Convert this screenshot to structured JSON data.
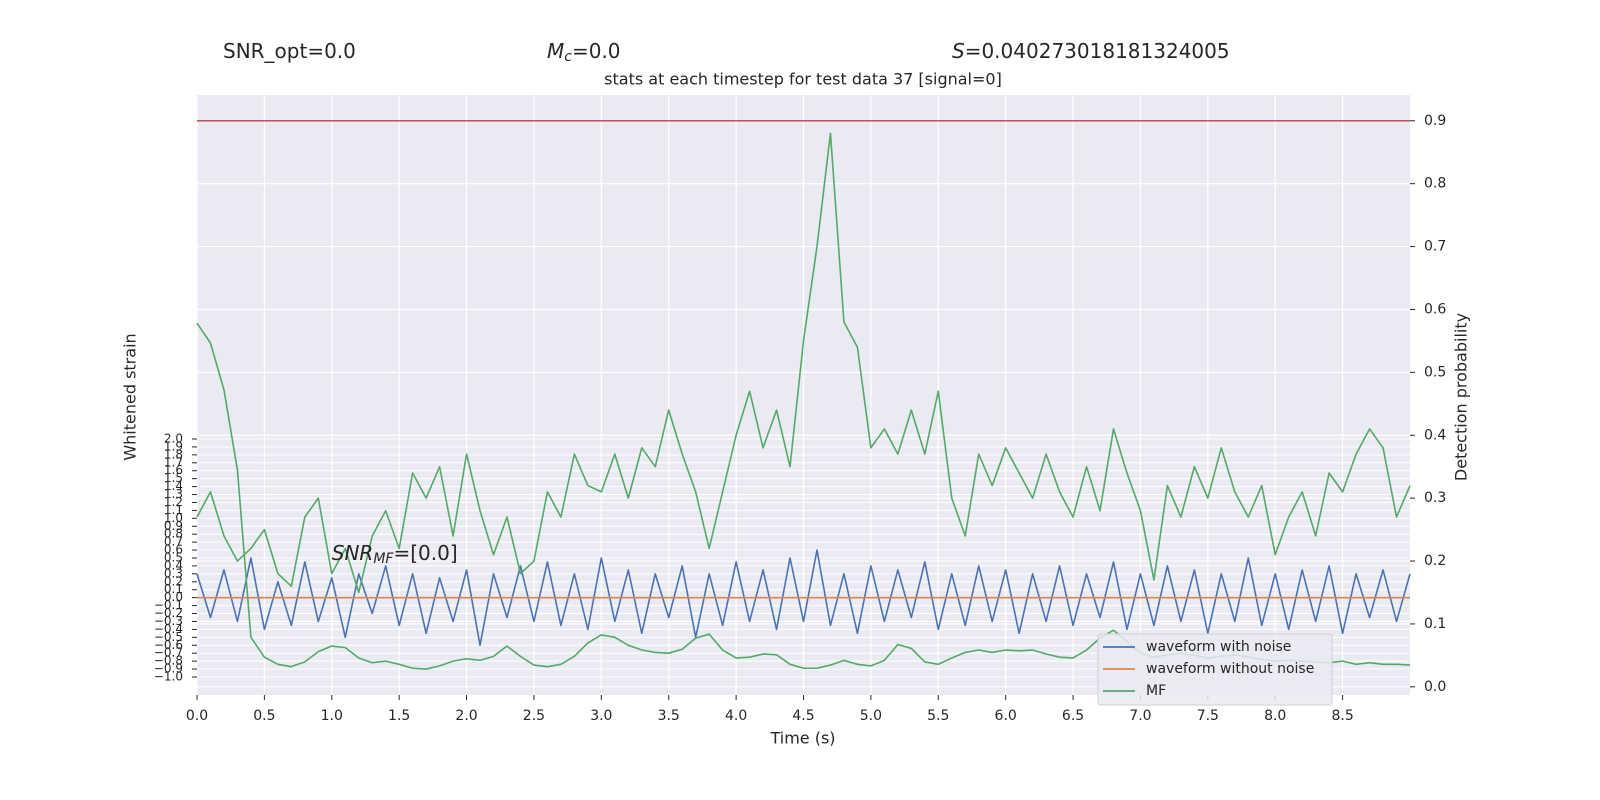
{
  "chart_data": {
    "type": "line",
    "headers": [
      {
        "main": "SNR_opt=0.0"
      },
      {
        "main": "M",
        "sub": "c",
        "rest": "=0.0"
      },
      {
        "main": "S",
        "rest": "=0.040273018181324005"
      }
    ],
    "title": "stats at each timestep for test data 37 [signal=0]",
    "annotation": {
      "main": "SNR",
      "sub": "MF",
      "rest": "=[0.0]",
      "x": 1.0,
      "y": 0.55
    },
    "x_label": "Time (s)",
    "y_label": "Whitened strain",
    "y2_label": "Detection probability",
    "grid": true,
    "legend": "lower right",
    "xlim": [
      0,
      9.0
    ],
    "ylim": [
      -1.227,
      6.336
    ],
    "y2lim": [
      -0.013,
      0.941
    ],
    "xticks": [
      {
        "value": 0,
        "label": "0.0"
      },
      {
        "value": 0.5,
        "label": "0.5"
      },
      {
        "value": 1,
        "label": "1.0"
      },
      {
        "value": 1.5,
        "label": "1.5"
      },
      {
        "value": 2,
        "label": "2.0"
      },
      {
        "value": 2.5,
        "label": "2.5"
      },
      {
        "value": 3,
        "label": "3.0"
      },
      {
        "value": 3.5,
        "label": "3.5"
      },
      {
        "value": 4,
        "label": "4.0"
      },
      {
        "value": 4.5,
        "label": "4.5"
      },
      {
        "value": 5,
        "label": "5.0"
      },
      {
        "value": 5.5,
        "label": "5.5"
      },
      {
        "value": 6,
        "label": "6.0"
      },
      {
        "value": 6.5,
        "label": "6.5"
      },
      {
        "value": 7,
        "label": "7.0"
      },
      {
        "value": 7.5,
        "label": "7.5"
      },
      {
        "value": 8,
        "label": "8.0"
      },
      {
        "value": 8.5,
        "label": "8.5"
      }
    ],
    "yticks": [
      {
        "value": -1,
        "label": "−1.0"
      },
      {
        "value": -0.9,
        "label": "−0.9"
      },
      {
        "value": -0.8,
        "label": "−0.8"
      },
      {
        "value": -0.7,
        "label": "−0.7"
      },
      {
        "value": -0.6,
        "label": "−0.6"
      },
      {
        "value": -0.5,
        "label": "−0.5"
      },
      {
        "value": -0.4,
        "label": "−0.4"
      },
      {
        "value": -0.3,
        "label": "−0.3"
      },
      {
        "value": -0.2,
        "label": "−0.2"
      },
      {
        "value": -0.1,
        "label": "−0.1"
      },
      {
        "value": 0,
        "label": "0.0"
      },
      {
        "value": 0.1,
        "label": "0.1"
      },
      {
        "value": 0.2,
        "label": "0.2"
      },
      {
        "value": 0.3,
        "label": "0.3"
      },
      {
        "value": 0.4,
        "label": "0.4"
      },
      {
        "value": 0.5,
        "label": "0.5"
      },
      {
        "value": 0.6,
        "label": "0.6"
      },
      {
        "value": 0.7,
        "label": "0.7"
      },
      {
        "value": 0.8,
        "label": "0.8"
      },
      {
        "value": 0.9,
        "label": "0.9"
      },
      {
        "value": 1,
        "label": "1.0"
      },
      {
        "value": 1.1,
        "label": "1.1"
      },
      {
        "value": 1.2,
        "label": "1.2"
      },
      {
        "value": 1.3,
        "label": "1.3"
      },
      {
        "value": 1.4,
        "label": "1.4"
      },
      {
        "value": 1.5,
        "label": "1.5"
      },
      {
        "value": 1.6,
        "label": "1.6"
      },
      {
        "value": 1.7,
        "label": "1.7"
      },
      {
        "value": 1.8,
        "label": "1.8"
      },
      {
        "value": 1.9,
        "label": "1.9"
      },
      {
        "value": 2,
        "label": "2.0"
      }
    ],
    "y2ticks": [
      {
        "value": 0,
        "label": "0.0"
      },
      0.1,
      0.2,
      0.3,
      0.4,
      0.5,
      0.6,
      0.7,
      0.8,
      0.9
    ],
    "hline": {
      "value": 0.9,
      "color": "#c44e52",
      "axis": "y2"
    },
    "x": [
      0,
      0.1,
      0.2,
      0.3,
      0.4,
      0.5,
      0.6,
      0.7,
      0.8,
      0.9,
      1,
      1.1,
      1.2,
      1.3,
      1.4,
      1.5,
      1.6,
      1.7,
      1.8,
      1.9,
      2,
      2.1,
      2.2,
      2.3,
      2.4,
      2.5,
      2.6,
      2.7,
      2.8,
      2.9,
      3,
      3.1,
      3.2,
      3.3,
      3.4,
      3.5,
      3.6,
      3.7,
      3.8,
      3.9,
      4,
      4.1,
      4.2,
      4.3,
      4.4,
      4.5,
      4.6,
      4.7,
      4.8,
      4.9,
      5,
      5.1,
      5.2,
      5.3,
      5.4,
      5.5,
      5.6,
      5.7,
      5.8,
      5.9,
      6,
      6.1,
      6.2,
      6.3,
      6.4,
      6.5,
      6.6,
      6.7,
      6.8,
      6.9,
      7,
      7.1,
      7.2,
      7.3,
      7.4,
      7.5,
      7.6,
      7.7,
      7.8,
      7.9,
      8,
      8.1,
      8.2,
      8.3,
      8.4,
      8.5,
      8.6,
      8.7,
      8.8,
      8.9,
      9
    ],
    "series": [
      {
        "name": "waveform with noise",
        "color": "#4c72b0",
        "axis": "y",
        "values": [
          0.3,
          -0.25,
          0.35,
          -0.3,
          0.5,
          -0.4,
          0.2,
          -0.35,
          0.45,
          -0.3,
          0.25,
          -0.5,
          0.3,
          -0.2,
          0.4,
          -0.35,
          0.3,
          -0.45,
          0.25,
          -0.3,
          0.35,
          -0.6,
          0.3,
          -0.25,
          0.4,
          -0.3,
          0.45,
          -0.35,
          0.3,
          -0.4,
          0.5,
          -0.3,
          0.35,
          -0.45,
          0.3,
          -0.25,
          0.4,
          -0.5,
          0.3,
          -0.35,
          0.45,
          -0.3,
          0.35,
          -0.4,
          0.5,
          -0.3,
          0.6,
          -0.35,
          0.3,
          -0.45,
          0.4,
          -0.3,
          0.35,
          -0.25,
          0.45,
          -0.4,
          0.3,
          -0.35,
          0.4,
          -0.3,
          0.35,
          -0.45,
          0.3,
          -0.3,
          0.4,
          -0.35,
          0.3,
          -0.25,
          0.45,
          -0.4,
          0.3,
          -0.35,
          0.4,
          -0.3,
          0.35,
          -0.45,
          0.3,
          -0.3,
          0.5,
          -0.35,
          0.3,
          -0.4,
          0.35,
          -0.3,
          0.4,
          -0.45,
          0.3,
          -0.25,
          0.35,
          -0.3,
          0.3
        ]
      },
      {
        "name": "waveform without noise",
        "color": "#dd8452",
        "axis": "y",
        "values": [
          0,
          0,
          0,
          0,
          0,
          0,
          0,
          0,
          0,
          0,
          0,
          0,
          0,
          0,
          0,
          0,
          0,
          0,
          0,
          0,
          0,
          0,
          0,
          0,
          0,
          0,
          0,
          0,
          0,
          0,
          0,
          0,
          0,
          0,
          0,
          0,
          0,
          0,
          0,
          0,
          0,
          0,
          0,
          0,
          0,
          0,
          0,
          0,
          0,
          0,
          0,
          0,
          0,
          0,
          0,
          0,
          0,
          0,
          0,
          0,
          0,
          0,
          0,
          0,
          0,
          0,
          0,
          0,
          0,
          0,
          0,
          0,
          0,
          0,
          0,
          0,
          0,
          0,
          0,
          0,
          0,
          0,
          0,
          0,
          0,
          0,
          0,
          0,
          0,
          0,
          0
        ]
      },
      {
        "name": "MF",
        "color": "#55a868",
        "axis": "y",
        "values": [
          3.46,
          3.21,
          2.62,
          1.61,
          -0.5,
          -0.75,
          -0.84,
          -0.87,
          -0.81,
          -0.68,
          -0.61,
          -0.63,
          -0.76,
          -0.82,
          -0.8,
          -0.84,
          -0.89,
          -0.9,
          -0.86,
          -0.8,
          -0.77,
          -0.79,
          -0.74,
          -0.61,
          -0.74,
          -0.85,
          -0.87,
          -0.84,
          -0.74,
          -0.57,
          -0.47,
          -0.5,
          -0.6,
          -0.66,
          -0.69,
          -0.7,
          -0.65,
          -0.51,
          -0.46,
          -0.66,
          -0.76,
          -0.75,
          -0.71,
          -0.72,
          -0.84,
          -0.89,
          -0.89,
          -0.85,
          -0.79,
          -0.84,
          -0.86,
          -0.79,
          -0.59,
          -0.64,
          -0.81,
          -0.84,
          -0.76,
          -0.69,
          -0.66,
          -0.69,
          -0.66,
          -0.67,
          -0.66,
          -0.71,
          -0.75,
          -0.76,
          -0.66,
          -0.51,
          -0.41,
          -0.55,
          -0.7,
          -0.75,
          -0.72,
          -0.7,
          -0.73,
          -0.76,
          -0.74,
          -0.72,
          -0.75,
          -0.78,
          -0.8,
          -0.79,
          -0.8,
          -0.81,
          -0.82,
          -0.8,
          -0.84,
          -0.82,
          -0.84,
          -0.84,
          -0.85
        ]
      },
      {
        "color": "#55a868",
        "axis": "y2",
        "values": [
          0.27,
          0.31,
          0.24,
          0.2,
          0.22,
          0.25,
          0.18,
          0.16,
          0.27,
          0.3,
          0.18,
          0.22,
          0.15,
          0.24,
          0.28,
          0.22,
          0.34,
          0.3,
          0.35,
          0.24,
          0.37,
          0.28,
          0.21,
          0.27,
          0.18,
          0.2,
          0.31,
          0.27,
          0.37,
          0.32,
          0.31,
          0.37,
          0.3,
          0.38,
          0.35,
          0.44,
          0.37,
          0.31,
          0.22,
          0.31,
          0.4,
          0.47,
          0.38,
          0.44,
          0.35,
          0.55,
          0.7,
          0.88,
          0.58,
          0.54,
          0.38,
          0.41,
          0.37,
          0.44,
          0.37,
          0.47,
          0.3,
          0.24,
          0.37,
          0.32,
          0.38,
          0.34,
          0.3,
          0.37,
          0.31,
          0.27,
          0.35,
          0.28,
          0.41,
          0.34,
          0.28,
          0.17,
          0.32,
          0.27,
          0.35,
          0.3,
          0.38,
          0.31,
          0.27,
          0.32,
          0.21,
          0.27,
          0.31,
          0.24,
          0.34,
          0.31,
          0.37,
          0.41,
          0.38,
          0.27,
          0.32
        ]
      }
    ]
  }
}
